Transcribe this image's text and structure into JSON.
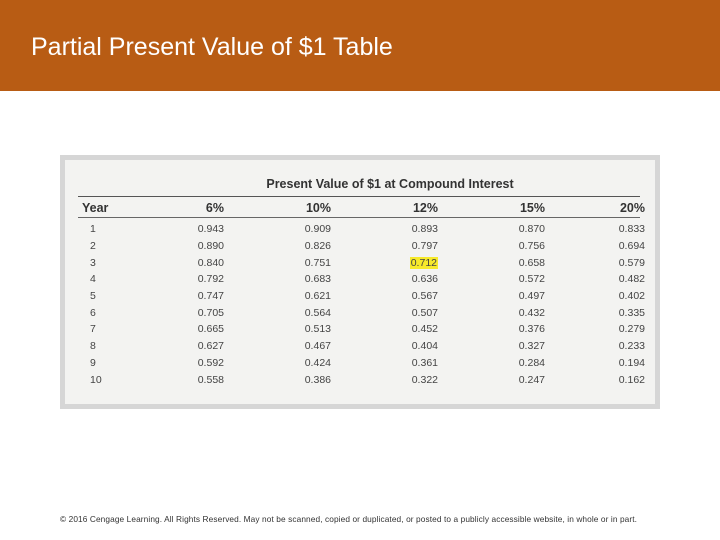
{
  "slide": {
    "title": "Partial Present Value of $1 Table",
    "header_color": "#b85c14"
  },
  "table": {
    "caption": "Present Value of $1 at Compound Interest",
    "columns": [
      "Year",
      "6%",
      "10%",
      "12%",
      "15%",
      "20%"
    ],
    "rows": [
      [
        "1",
        "0.943",
        "0.909",
        "0.893",
        "0.870",
        "0.833"
      ],
      [
        "2",
        "0.890",
        "0.826",
        "0.797",
        "0.756",
        "0.694"
      ],
      [
        "3",
        "0.840",
        "0.751",
        "0.712",
        "0.658",
        "0.579"
      ],
      [
        "4",
        "0.792",
        "0.683",
        "0.636",
        "0.572",
        "0.482"
      ],
      [
        "5",
        "0.747",
        "0.621",
        "0.567",
        "0.497",
        "0.402"
      ],
      [
        "6",
        "0.705",
        "0.564",
        "0.507",
        "0.432",
        "0.335"
      ],
      [
        "7",
        "0.665",
        "0.513",
        "0.452",
        "0.376",
        "0.279"
      ],
      [
        "8",
        "0.627",
        "0.467",
        "0.404",
        "0.327",
        "0.233"
      ],
      [
        "9",
        "0.592",
        "0.424",
        "0.361",
        "0.284",
        "0.194"
      ],
      [
        "10",
        "0.558",
        "0.386",
        "0.322",
        "0.247",
        "0.162"
      ]
    ],
    "highlight": {
      "row": 2,
      "col": 3,
      "color": "#f7ea2b"
    }
  },
  "footer": {
    "copyright": "© 2016 Cengage Learning. All Rights Reserved. May not be scanned, copied or duplicated, or posted to a publicly accessible website, in whole or in part."
  }
}
